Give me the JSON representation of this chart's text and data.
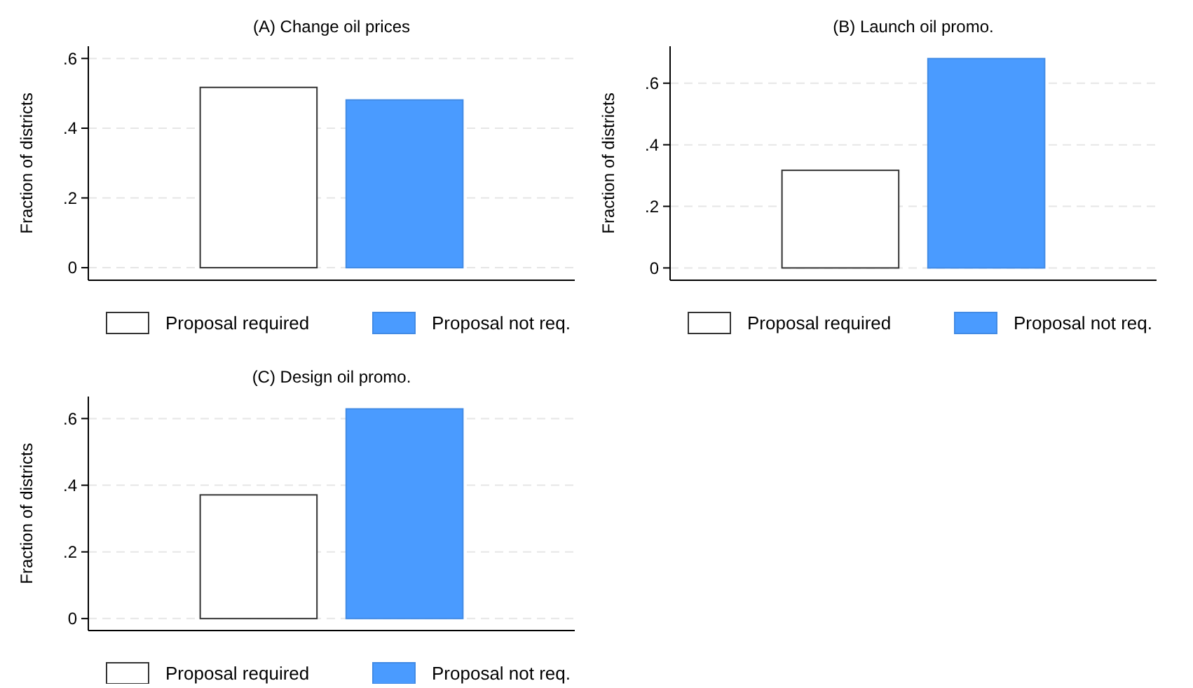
{
  "chart_data": [
    {
      "type": "bar",
      "title": "(A) Change oil prices",
      "ylabel": "Fraction of districts",
      "categories": [
        null
      ],
      "series": [
        {
          "name": "Proposal required",
          "color": "#ffffff",
          "values": [
            0.517
          ]
        },
        {
          "name": "Proposal not req.",
          "color": "#4a9bff",
          "values": [
            0.481
          ]
        }
      ],
      "ylim": [
        -0.036,
        0.635
      ],
      "yticks": [
        {
          "value": 0,
          "label": "0"
        },
        {
          "value": 0.2,
          "label": ".2"
        },
        {
          "value": 0.4,
          "label": ".4"
        },
        {
          "value": 0.6,
          "label": ".6"
        }
      ],
      "grid": "y",
      "legend": "bottom"
    },
    {
      "type": "bar",
      "title": "(B) Launch oil promo.",
      "ylabel": "Fraction of districts",
      "categories": [
        null
      ],
      "series": [
        {
          "name": "Proposal required",
          "color": "#ffffff",
          "values": [
            0.317
          ]
        },
        {
          "name": "Proposal not req.",
          "color": "#4a9bff",
          "values": [
            0.68
          ]
        }
      ],
      "ylim": [
        -0.04,
        0.72
      ],
      "yticks": [
        {
          "value": 0,
          "label": "0"
        },
        {
          "value": 0.2,
          "label": ".2"
        },
        {
          "value": 0.4,
          "label": ".4"
        },
        {
          "value": 0.6,
          "label": ".6"
        }
      ],
      "grid": "y",
      "legend": "bottom"
    },
    {
      "type": "bar",
      "title": "(C) Design oil promo.",
      "ylabel": "Fraction of districts",
      "categories": [
        null
      ],
      "series": [
        {
          "name": "Proposal required",
          "color": "#ffffff",
          "values": [
            0.371
          ]
        },
        {
          "name": "Proposal not req.",
          "color": "#4a9bff",
          "values": [
            0.629
          ]
        }
      ],
      "ylim": [
        -0.036,
        0.666
      ],
      "yticks": [
        {
          "value": 0,
          "label": "0"
        },
        {
          "value": 0.2,
          "label": ".2"
        },
        {
          "value": 0.4,
          "label": ".4"
        },
        {
          "value": 0.6,
          "label": ".6"
        }
      ],
      "grid": "y",
      "legend": "bottom"
    }
  ]
}
